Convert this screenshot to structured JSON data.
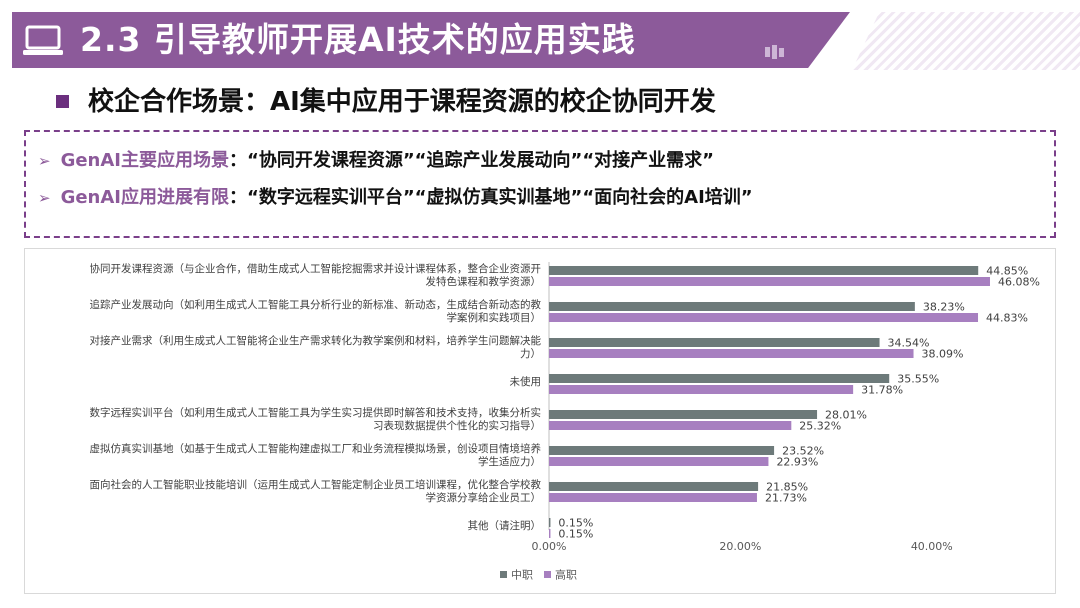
{
  "header": {
    "title": "2.3 引导教师开展AI技术的应用实践",
    "icon": "laptop-icon"
  },
  "subtitle": "校企合作场景：AI集中应用于课程资源的校企协同开发",
  "info": {
    "line1_key": "GenAI主要应用场景",
    "line1_value": "：“协同开发课程资源”“追踪产业发展动向”“对接产业需求”",
    "line2_key": "GenAI应用进展有限",
    "line2_value": "：“数字远程实训平台”“虚拟仿真实训基地”“面向社会的AI培训”",
    "arrow_icon": "triangle-right-icon"
  },
  "chart_data": {
    "type": "bar",
    "orientation": "horizontal",
    "categories": [
      [
        "协同开发课程资源（与企业合作，借助生成式人工智能挖掘需求并设计课程体系，整合企业资源开",
        "发特色课程和教学资源）"
      ],
      [
        "追踪产业发展动向（如利用生成式人工智能工具分析行业的新标准、新动态，生成结合新动态的教",
        "学案例和实践项目）"
      ],
      [
        "对接产业需求（利用生成式人工智能将企业生产需求转化为教学案例和材料，培养学生问题解决能",
        "力）"
      ],
      [
        "未使用"
      ],
      [
        "数字远程实训平台（如利用生成式人工智能工具为学生实习提供即时解答和技术支持，收集分析实",
        "习表现数据提供个性化的实习指导）"
      ],
      [
        "虚拟仿真实训基地（如基于生成式人工智能构建虚拟工厂和业务流程模拟场景，创设项目情境培养",
        "学生适应力）"
      ],
      [
        "面向社会的人工智能职业技能培训（运用生成式人工智能定制企业员工培训课程，优化整合学校教",
        "学资源分享给企业员工）"
      ],
      [
        "其他（请注明）"
      ]
    ],
    "series": [
      {
        "name": "中职",
        "color": "#6d7a7a",
        "values": [
          44.85,
          38.23,
          34.54,
          35.55,
          28.01,
          23.52,
          21.85,
          0.15
        ],
        "labels": [
          "44.85%",
          "38.23%",
          "34.54%",
          "35.55%",
          "28.01%",
          "23.52%",
          "21.85%",
          "0.15%"
        ]
      },
      {
        "name": "高职",
        "color": "#a77fc0",
        "values": [
          46.08,
          44.83,
          38.09,
          31.78,
          25.32,
          22.93,
          21.73,
          0.15
        ],
        "labels": [
          "46.08%",
          "44.83%",
          "38.09%",
          "31.78%",
          "25.32%",
          "22.93%",
          "21.73%",
          "0.15%"
        ]
      }
    ],
    "xlim": [
      0,
      50
    ],
    "xticks": [
      0,
      20,
      40
    ],
    "xtick_labels": [
      "0.00%",
      "20.00%",
      "40.00%"
    ],
    "grid": false,
    "legend": "bottom"
  }
}
